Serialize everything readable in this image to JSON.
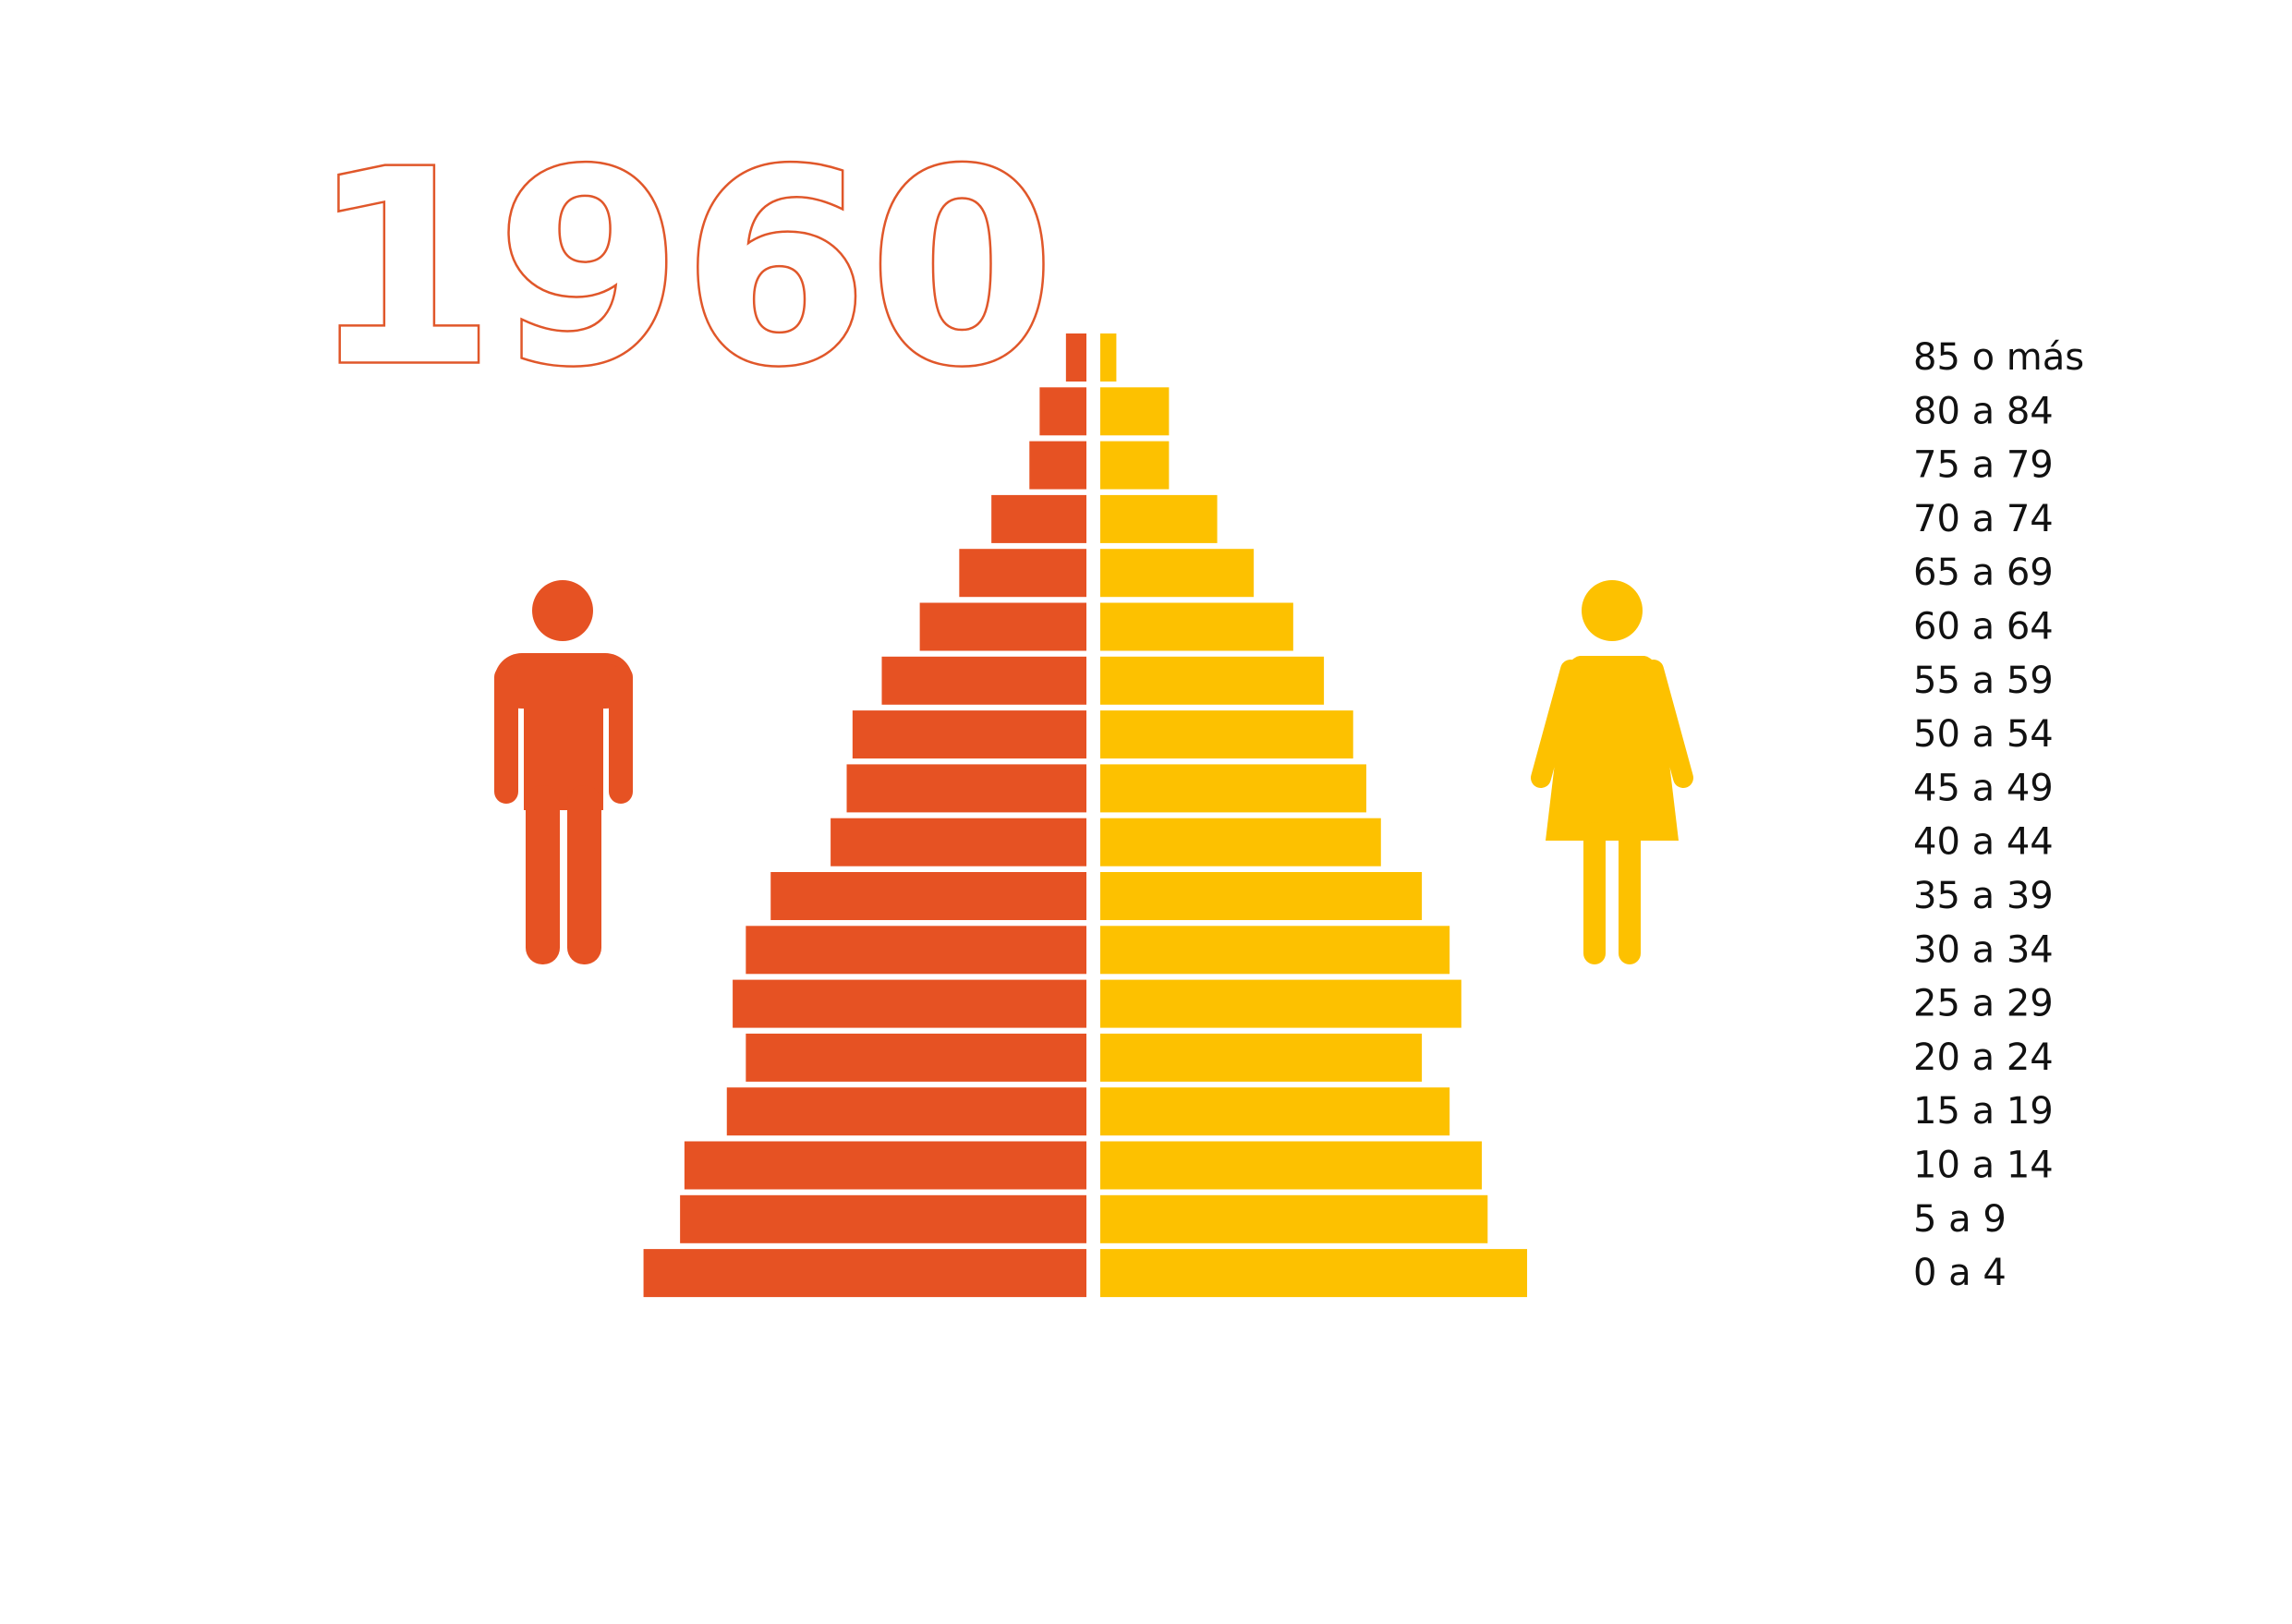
{
  "chart_data": {
    "type": "pyramid",
    "title": "1960",
    "categories": [
      "85 o más",
      "80 a 84",
      "75 a 79",
      "70 a 74",
      "65 a 69",
      "60 a 64",
      "55 a 59",
      "50 a 54",
      "45 a 49",
      "40 a 44",
      "35 a 39",
      "30 a 34",
      "25 a 29",
      "20 a 24",
      "15 a 19",
      "10 a 14",
      "5 a 9",
      "0 a 4"
    ],
    "series": [
      {
        "color": "#e65223",
        "values": [
          14,
          32,
          39,
          65,
          87,
          114,
          140,
          160,
          164,
          175,
          216,
          233,
          242,
          233,
          246,
          275,
          278,
          303
        ]
      },
      {
        "color": "#fdc100",
        "values": [
          11,
          47,
          47,
          80,
          105,
          132,
          153,
          173,
          182,
          192,
          220,
          239,
          247,
          220,
          239,
          261,
          265,
          292
        ]
      }
    ]
  }
}
